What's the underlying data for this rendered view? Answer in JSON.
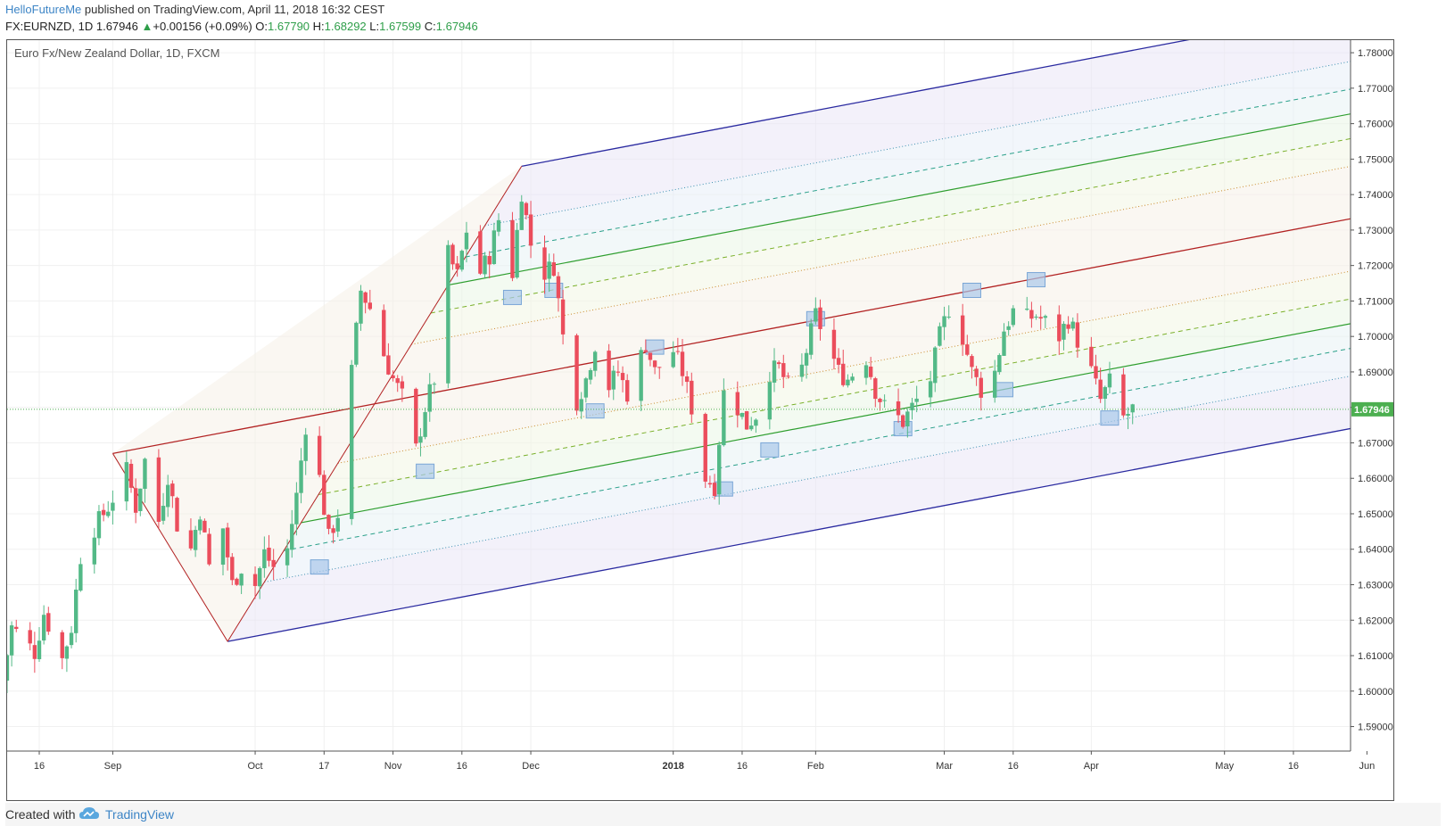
{
  "header": {
    "author": "HelloFutureMe",
    "published_text": "published on TradingView.com, April 11, 2018 16:32 CEST",
    "symbol": "FX:EURNZD, 1D",
    "last": "1.67946",
    "change": "+0.00156 (+0.09%)",
    "o_label": "O:",
    "o_value": "1.67790",
    "h_label": "H:",
    "h_value": "1.68292",
    "l_label": "L:",
    "l_value": "1.67599",
    "c_label": "C:",
    "c_value": "1.67946"
  },
  "footer": {
    "created_with": "Created with",
    "brand": "TradingView"
  },
  "colors": {
    "up": "#53b987",
    "down": "#eb4d5c",
    "last_price": "#4caf50",
    "median": "#b22222",
    "outer": "#2a2aa0",
    "inner_green": "#2e9e2e"
  },
  "chart_data": {
    "type": "candlestick",
    "title": "Euro Fx/New Zealand Dollar, 1D, FXCM",
    "last_price": 1.67946,
    "y_ticks": [
      "1.78000",
      "1.77000",
      "1.76000",
      "1.75000",
      "1.74000",
      "1.73000",
      "1.72000",
      "1.71000",
      "1.70000",
      "1.69000",
      "1.68000",
      "1.67000",
      "1.66000",
      "1.65000",
      "1.64000",
      "1.63000",
      "1.62000",
      "1.61000",
      "1.60000",
      "1.59000"
    ],
    "x_ticks": [
      {
        "label": "16",
        "date": "2017-08-16"
      },
      {
        "label": "Sep",
        "date": "2017-09-01"
      },
      {
        "label": "Oct",
        "date": "2017-10-02"
      },
      {
        "label": "17",
        "date": "2017-10-17"
      },
      {
        "label": "Nov",
        "date": "2017-11-01"
      },
      {
        "label": "16",
        "date": "2017-11-16"
      },
      {
        "label": "Dec",
        "date": "2017-12-01"
      },
      {
        "label": "2018",
        "date": "2018-01-01"
      },
      {
        "label": "16",
        "date": "2018-01-16"
      },
      {
        "label": "Feb",
        "date": "2018-02-01"
      },
      {
        "label": "Mar",
        "date": "2018-03-01"
      },
      {
        "label": "16",
        "date": "2018-03-16"
      },
      {
        "label": "Apr",
        "date": "2018-04-02"
      },
      {
        "label": "May",
        "date": "2018-05-01"
      },
      {
        "label": "16",
        "date": "2018-05-16"
      },
      {
        "label": "Jun",
        "date": "2018-06-01"
      }
    ],
    "close_path": [
      [
        "2017-08-08",
        1.603
      ],
      [
        "2017-08-10",
        1.618
      ],
      [
        "2017-08-15",
        1.611
      ],
      [
        "2017-08-17",
        1.622
      ],
      [
        "2017-08-21",
        1.609
      ],
      [
        "2017-08-23",
        1.618
      ],
      [
        "2017-08-25",
        1.638
      ],
      [
        "2017-08-28",
        1.646
      ],
      [
        "2017-08-31",
        1.652
      ],
      [
        "2017-09-04",
        1.662
      ],
      [
        "2017-09-06",
        1.652
      ],
      [
        "2017-09-08",
        1.665
      ],
      [
        "2017-09-11",
        1.648
      ],
      [
        "2017-09-13",
        1.661
      ],
      [
        "2017-09-15",
        1.647
      ],
      [
        "2017-09-18",
        1.64
      ],
      [
        "2017-09-20",
        1.651
      ],
      [
        "2017-09-22",
        1.635
      ],
      [
        "2017-09-25",
        1.646
      ],
      [
        "2017-09-27",
        1.63
      ],
      [
        "2017-09-29",
        1.635
      ],
      [
        "2017-10-02",
        1.63
      ],
      [
        "2017-10-04",
        1.639
      ],
      [
        "2017-10-06",
        1.635
      ],
      [
        "2017-10-09",
        1.64
      ],
      [
        "2017-10-11",
        1.655
      ],
      [
        "2017-10-13",
        1.675
      ],
      [
        "2017-10-16",
        1.66
      ],
      [
        "2017-10-18",
        1.643
      ],
      [
        "2017-10-20",
        1.65
      ],
      [
        "2017-10-23",
        1.69
      ],
      [
        "2017-10-25",
        1.713
      ],
      [
        "2017-10-27",
        1.708
      ],
      [
        "2017-10-30",
        1.695
      ],
      [
        "2017-11-01",
        1.688
      ],
      [
        "2017-11-03",
        1.683
      ],
      [
        "2017-11-06",
        1.668
      ],
      [
        "2017-11-08",
        1.68
      ],
      [
        "2017-11-10",
        1.688
      ],
      [
        "2017-11-13",
        1.723
      ],
      [
        "2017-11-15",
        1.717
      ],
      [
        "2017-11-17",
        1.73
      ],
      [
        "2017-11-20",
        1.718
      ],
      [
        "2017-11-22",
        1.723
      ],
      [
        "2017-11-24",
        1.733
      ],
      [
        "2017-11-27",
        1.718
      ],
      [
        "2017-11-29",
        1.741
      ],
      [
        "2017-12-01",
        1.726
      ],
      [
        "2017-12-04",
        1.718
      ],
      [
        "2017-12-06",
        1.72
      ],
      [
        "2017-12-08",
        1.7
      ],
      [
        "2017-12-11",
        1.682
      ],
      [
        "2017-12-13",
        1.688
      ],
      [
        "2017-12-15",
        1.698
      ],
      [
        "2017-12-18",
        1.686
      ],
      [
        "2017-12-20",
        1.69
      ],
      [
        "2017-12-22",
        1.684
      ],
      [
        "2017-12-26",
        1.698
      ],
      [
        "2017-12-28",
        1.69
      ],
      [
        "2018-01-01",
        1.696
      ],
      [
        "2018-01-03",
        1.69
      ],
      [
        "2018-01-05",
        1.68
      ],
      [
        "2018-01-08",
        1.66
      ],
      [
        "2018-01-10",
        1.658
      ],
      [
        "2018-01-12",
        1.684
      ],
      [
        "2018-01-15",
        1.68
      ],
      [
        "2018-01-17",
        1.675
      ],
      [
        "2018-01-19",
        1.678
      ],
      [
        "2018-01-22",
        1.69
      ],
      [
        "2018-01-24",
        1.691
      ],
      [
        "2018-01-26",
        1.686
      ],
      [
        "2018-01-29",
        1.691
      ],
      [
        "2018-02-01",
        1.706
      ],
      [
        "2018-02-03",
        1.7
      ],
      [
        "2018-02-06",
        1.69
      ],
      [
        "2018-02-08",
        1.688
      ],
      [
        "2018-02-12",
        1.694
      ],
      [
        "2018-02-14",
        1.685
      ],
      [
        "2018-02-16",
        1.68
      ],
      [
        "2018-02-20",
        1.676
      ],
      [
        "2018-02-22",
        1.68
      ],
      [
        "2018-02-26",
        1.688
      ],
      [
        "2018-02-28",
        1.7
      ],
      [
        "2018-03-02",
        1.708
      ],
      [
        "2018-03-05",
        1.7
      ],
      [
        "2018-03-07",
        1.69
      ],
      [
        "2018-03-09",
        1.685
      ],
      [
        "2018-03-12",
        1.69
      ],
      [
        "2018-03-14",
        1.702
      ],
      [
        "2018-03-16",
        1.707
      ],
      [
        "2018-03-19",
        1.705
      ],
      [
        "2018-03-21",
        1.706
      ],
      [
        "2018-03-23",
        1.704
      ],
      [
        "2018-03-26",
        1.7
      ],
      [
        "2018-03-28",
        1.705
      ],
      [
        "2018-04-02",
        1.69
      ],
      [
        "2018-04-04",
        1.682
      ],
      [
        "2018-04-06",
        1.687
      ],
      [
        "2018-04-09",
        1.677
      ],
      [
        "2018-04-11",
        1.67946
      ]
    ],
    "pitchfork": {
      "pivot_a": [
        "2017-09-01",
        1.667
      ],
      "pivot_b": [
        "2017-09-26",
        1.614
      ],
      "pivot_c": [
        "2017-11-29",
        1.748
      ],
      "levels": [
        -1,
        -0.75,
        -0.618,
        -0.5,
        -0.382,
        -0.25,
        0,
        0.25,
        0.382,
        0.5,
        0.618,
        0.75,
        1
      ]
    },
    "touch_markers": [
      [
        "2017-10-16",
        1.635
      ],
      [
        "2017-11-08",
        1.662
      ],
      [
        "2017-11-27",
        1.711
      ],
      [
        "2017-12-06",
        1.713
      ],
      [
        "2017-12-15",
        1.679
      ],
      [
        "2017-12-28",
        1.697
      ],
      [
        "2018-01-12",
        1.657
      ],
      [
        "2018-01-22",
        1.668
      ],
      [
        "2018-02-01",
        1.705
      ],
      [
        "2018-02-20",
        1.674
      ],
      [
        "2018-03-07",
        1.713
      ],
      [
        "2018-03-14",
        1.685
      ],
      [
        "2018-03-21",
        1.716
      ],
      [
        "2018-04-06",
        1.677
      ]
    ]
  }
}
